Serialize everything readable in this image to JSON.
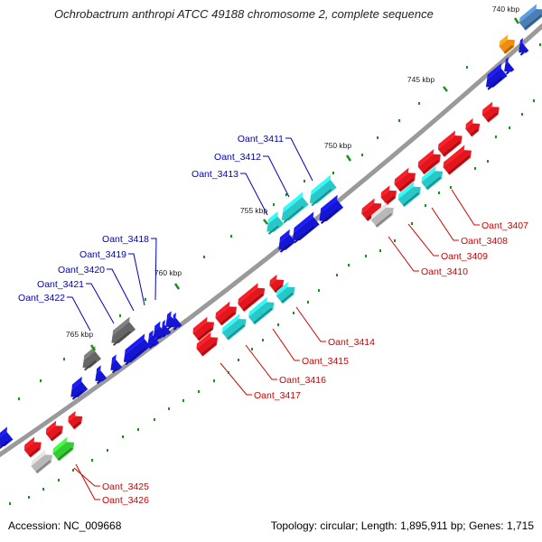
{
  "title": "Ochrobactrum anthropi ATCC 49188 chromosome 2, complete sequence",
  "footer": {
    "accession": "Accession: NC_009668",
    "summary": "Topology: circular; Length: 1,895,911 bp; Genes: 1,715"
  },
  "colors": {
    "backbone": "#9a9a9a",
    "forward_gene": "#e3161d",
    "reverse_gene": "#1515d6",
    "label_red": "#d40000",
    "label_blue": "#0000c0",
    "tick": "#1f8f1f",
    "ruler_text": "#222222"
  },
  "ruler": [
    "740 kbp",
    "745 kbp",
    "750 kbp",
    "755 kbp",
    "760 kbp",
    "765 kbp"
  ],
  "genes": [
    {
      "name": "Oant_3407",
      "color": "#e3161d",
      "strand": "fwd"
    },
    {
      "name": "Oant_3408",
      "color": "#28c8c8",
      "strand": "fwd"
    },
    {
      "name": "Oant_3409",
      "color": "#28c8c8",
      "strand": "fwd"
    },
    {
      "name": "Oant_3410",
      "color": "#b8b8b8",
      "strand": "fwd"
    },
    {
      "name": "Oant_3411",
      "color": "#28c8c8",
      "strand": "rev"
    },
    {
      "name": "Oant_3412",
      "color": "#28c8c8",
      "strand": "rev"
    },
    {
      "name": "Oant_3413",
      "color": "#28c8c8",
      "strand": "rev"
    },
    {
      "name": "Oant_3414",
      "color": "#28c8c8",
      "strand": "fwd"
    },
    {
      "name": "Oant_3415",
      "color": "#28c8c8",
      "strand": "fwd"
    },
    {
      "name": "Oant_3416",
      "color": "#28c8c8",
      "strand": "fwd"
    },
    {
      "name": "Oant_3417",
      "color": "#e3161d",
      "strand": "fwd"
    },
    {
      "name": "Oant_3418",
      "color": "#1515d6",
      "strand": "rev"
    },
    {
      "name": "Oant_3419",
      "color": "#1515d6",
      "strand": "rev"
    },
    {
      "name": "Oant_3420",
      "color": "#1515d6",
      "strand": "rev"
    },
    {
      "name": "Oant_3421",
      "color": "#666666",
      "strand": "rev"
    },
    {
      "name": "Oant_3422",
      "color": "#666666",
      "strand": "rev"
    },
    {
      "name": "Oant_3425",
      "color": "#b8b8b8",
      "strand": "fwd"
    },
    {
      "name": "Oant_3426",
      "color": "#33cc33",
      "strand": "fwd"
    }
  ]
}
